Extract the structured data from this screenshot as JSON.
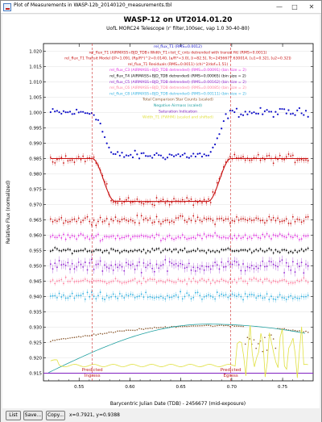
{
  "window": {
    "title": "Plot of Measurements in WASP-12b_20140120_measurements.tbl",
    "minimize_glyph": "—",
    "maximize_glyph": "□",
    "close_glyph": "✕"
  },
  "plot": {
    "title": "WASP-12 on UT2014.01.20",
    "subtitle": "UofL MORC24 Telescope (r' filter,100sec, vap 1.0 30-40-80)",
    "xlabel": "Barycentric Julian Date (TDB) - 2456677 (mid-exposure)",
    "ylabel": "Relative Flux (normalized)",
    "legend": [
      {
        "text": "rel_flux_T1 (RMS=0.0012)",
        "color": "#1010c8"
      },
      {
        "text": "rel_flux_T1 (AIRMASS+BJD_TDB+Width_T1+tot_C_cnts detrended with transit fit) (RMS=0.0011)",
        "color": "#c81010"
      },
      {
        "text": "rel_flux_T1 Transit Model ([P=1.09], (Rp/R*)^2=0.0140, [a/R*=3.0], [i=82.5], Tc=2456677.630014, [u1=0.32], [u2=0.32])",
        "color": "#c81010"
      },
      {
        "text": "rel_flux_T1 Residuals (RMS=0.0011) (chi^2/dof=1.51)",
        "color": "#c81010"
      },
      {
        "text": "rel_flux_C3 (AIRMASS+BJD_TDB detrended) (RMS=0.00091) (bin size = 2)",
        "color": "#e030e0"
      },
      {
        "text": "rel_flux_T4 (AIRMASS+BJD_TDB detrended) (RMS=0.00065) (bin size = 2)",
        "color": "#000000"
      },
      {
        "text": "rel_flux_C5 (AIRMASS+BJD_TDB detrended) (RMS=0.00162) (bin size = 2)",
        "color": "#9020d0"
      },
      {
        "text": "rel_flux_C6 (AIRMASS+BJD_TDB detrended) (RMS=0.00085) (bin size = 2)",
        "color": "#ff80a0"
      },
      {
        "text": "rel_flux_C8 (AIRMASS+BJD_TDB detrended) (RMS=0.00111) (bin size = 2)",
        "color": "#30b0e0"
      },
      {
        "text": "Total Comparison Star Counts (scaled)",
        "color": "#8a5a30"
      },
      {
        "text": "Negative Airmass (scaled)",
        "color": "#20a0a0"
      },
      {
        "text": "Saturation Indication",
        "color": "#8020c0"
      },
      {
        "text": "Width_T1 (FWHM) (scaled and shifted)",
        "color": "#e0e040"
      }
    ],
    "markers": [
      {
        "label1": "Predicted",
        "label2": "Ingress"
      },
      {
        "label1": "Predicted",
        "label2": "Egress"
      }
    ]
  },
  "chart_data": {
    "type": "scatter",
    "title": "WASP-12 on UT2014.01.20",
    "xlabel": "Barycentric Julian Date (TDB) - 2456677 (mid-exposure)",
    "ylabel": "Relative Flux (normalized)",
    "xlim": [
      0.515,
      0.78
    ],
    "ylim": [
      0.9125,
      1.0225
    ],
    "x_ticks": [
      0.55,
      0.6,
      0.65,
      0.7,
      0.75
    ],
    "y_ticks": [
      0.915,
      0.92,
      0.925,
      0.93,
      0.935,
      0.94,
      0.945,
      0.95,
      0.955,
      0.96,
      0.965,
      0.97,
      0.975,
      0.98,
      0.985,
      0.99,
      0.995,
      1.0,
      1.005,
      1.01,
      1.015,
      1.02
    ],
    "x_tick_labels": [
      "0.55",
      "0.60",
      "0.65",
      "0.70",
      "0.75"
    ],
    "y_tick_labels": [
      "0.915",
      "0.920",
      "0.925",
      "0.930",
      "0.935",
      "0.940",
      "0.945",
      "0.950",
      "0.955",
      "0.960",
      "0.965",
      "0.970",
      "0.975",
      "0.980",
      "0.985",
      "0.990",
      "0.995",
      "1.000",
      "1.005",
      "1.010",
      "1.015",
      "1.020"
    ],
    "ingress": 0.563,
    "egress": 0.699,
    "transit_depth": 0.014,
    "series": [
      {
        "name": "rel_flux_T1 (RMS=0.0012)",
        "baseline": 1.0,
        "depth": 0.014,
        "scatter": 0.0012,
        "color": "#1010c8"
      },
      {
        "name": "rel_flux_T1 detrended",
        "baseline": 0.985,
        "depth": 0.014,
        "scatter": 0.0011,
        "color": "#c81010",
        "model": true
      },
      {
        "name": "rel_flux_T1 Residuals",
        "baseline": 0.965,
        "depth": 0,
        "scatter": 0.0011,
        "color": "#c81010"
      },
      {
        "name": "rel_flux_C3",
        "baseline": 0.9595,
        "depth": 0,
        "scatter": 0.0009,
        "color": "#e030e0"
      },
      {
        "name": "rel_flux_T4",
        "baseline": 0.955,
        "depth": 0,
        "scatter": 0.00065,
        "color": "#000000"
      },
      {
        "name": "rel_flux_C5",
        "baseline": 0.95,
        "depth": 0,
        "scatter": 0.0016,
        "color": "#9020d0"
      },
      {
        "name": "rel_flux_C6",
        "baseline": 0.945,
        "depth": 0,
        "scatter": 0.00085,
        "color": "#ff80a0"
      },
      {
        "name": "rel_flux_C8",
        "baseline": 0.94,
        "depth": 0,
        "scatter": 0.0011,
        "color": "#30b0e0"
      }
    ],
    "comparison_counts": {
      "start": 0.9255,
      "end": 0.9305,
      "color": "#8a5a30"
    },
    "negative_airmass": {
      "start": 0.9152,
      "peak": 0.931,
      "end": 0.928,
      "color": "#20a0a0"
    },
    "saturation_level": 0.915,
    "width_t1": {
      "base": 0.9175,
      "color": "#e0e040"
    }
  },
  "toolbar": {
    "list_label": "List",
    "save_label": "Save...",
    "copy_label": "Copy...",
    "cursor_readout": "x=0.7921, y=0.9388"
  }
}
